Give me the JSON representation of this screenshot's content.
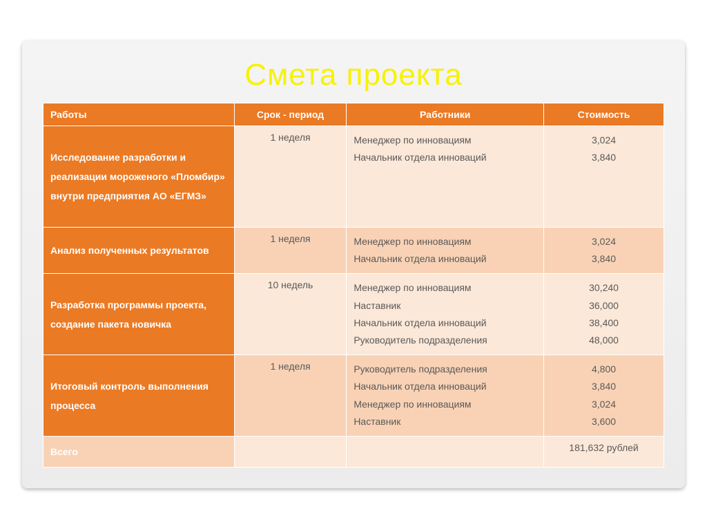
{
  "title": "Смета проекта",
  "columns": [
    "Работы",
    "Срок - период",
    "Работники",
    "Стоимость"
  ],
  "rows": [
    {
      "work": "Исследование разработки и реализации мороженого «Пломбир» внутри предприятия АО «ЕГМЗ»",
      "period": "1 неделя",
      "workers": [
        "Менеджер по инновациям",
        "Начальник отдела инноваций"
      ],
      "costs": [
        "3,024",
        "3,840"
      ],
      "tall": true,
      "alt": false
    },
    {
      "work": "Анализ полученных результатов",
      "period": "1 неделя",
      "workers": [
        "Менеджер по инновациям",
        "Начальник отдела инноваций"
      ],
      "costs": [
        "3,024",
        "3,840"
      ],
      "tall": false,
      "alt": true
    },
    {
      "work": "Разработка программы проекта, создание пакета новичка",
      "period": "10 недель",
      "workers": [
        "Менеджер по инновациям",
        "Наставник",
        "Начальник отдела инноваций",
        "Руководитель подразделения"
      ],
      "costs": [
        "30,240",
        "36,000",
        "38,400",
        "48,000"
      ],
      "tall": false,
      "alt": false
    },
    {
      "work": "Итоговый контроль выполнения процесса",
      "period": "1 неделя",
      "workers": [
        "Руководитель подразделения",
        "Начальник отдела инноваций",
        "Менеджер по инновациям",
        "Наставник"
      ],
      "costs": [
        "4,800",
        "3,840",
        "3,024",
        "3,600"
      ],
      "tall": false,
      "alt": true
    }
  ],
  "total_label": "Всего",
  "total_value": "181,632 рублей",
  "colors": {
    "header_bg": "#eb7a24",
    "header_text": "#ffffff",
    "title_color": "#f7f200",
    "row_alt_bg": "#f9d2b5",
    "row_norm_bg": "#fce8d8",
    "cell_text": "#595959"
  }
}
